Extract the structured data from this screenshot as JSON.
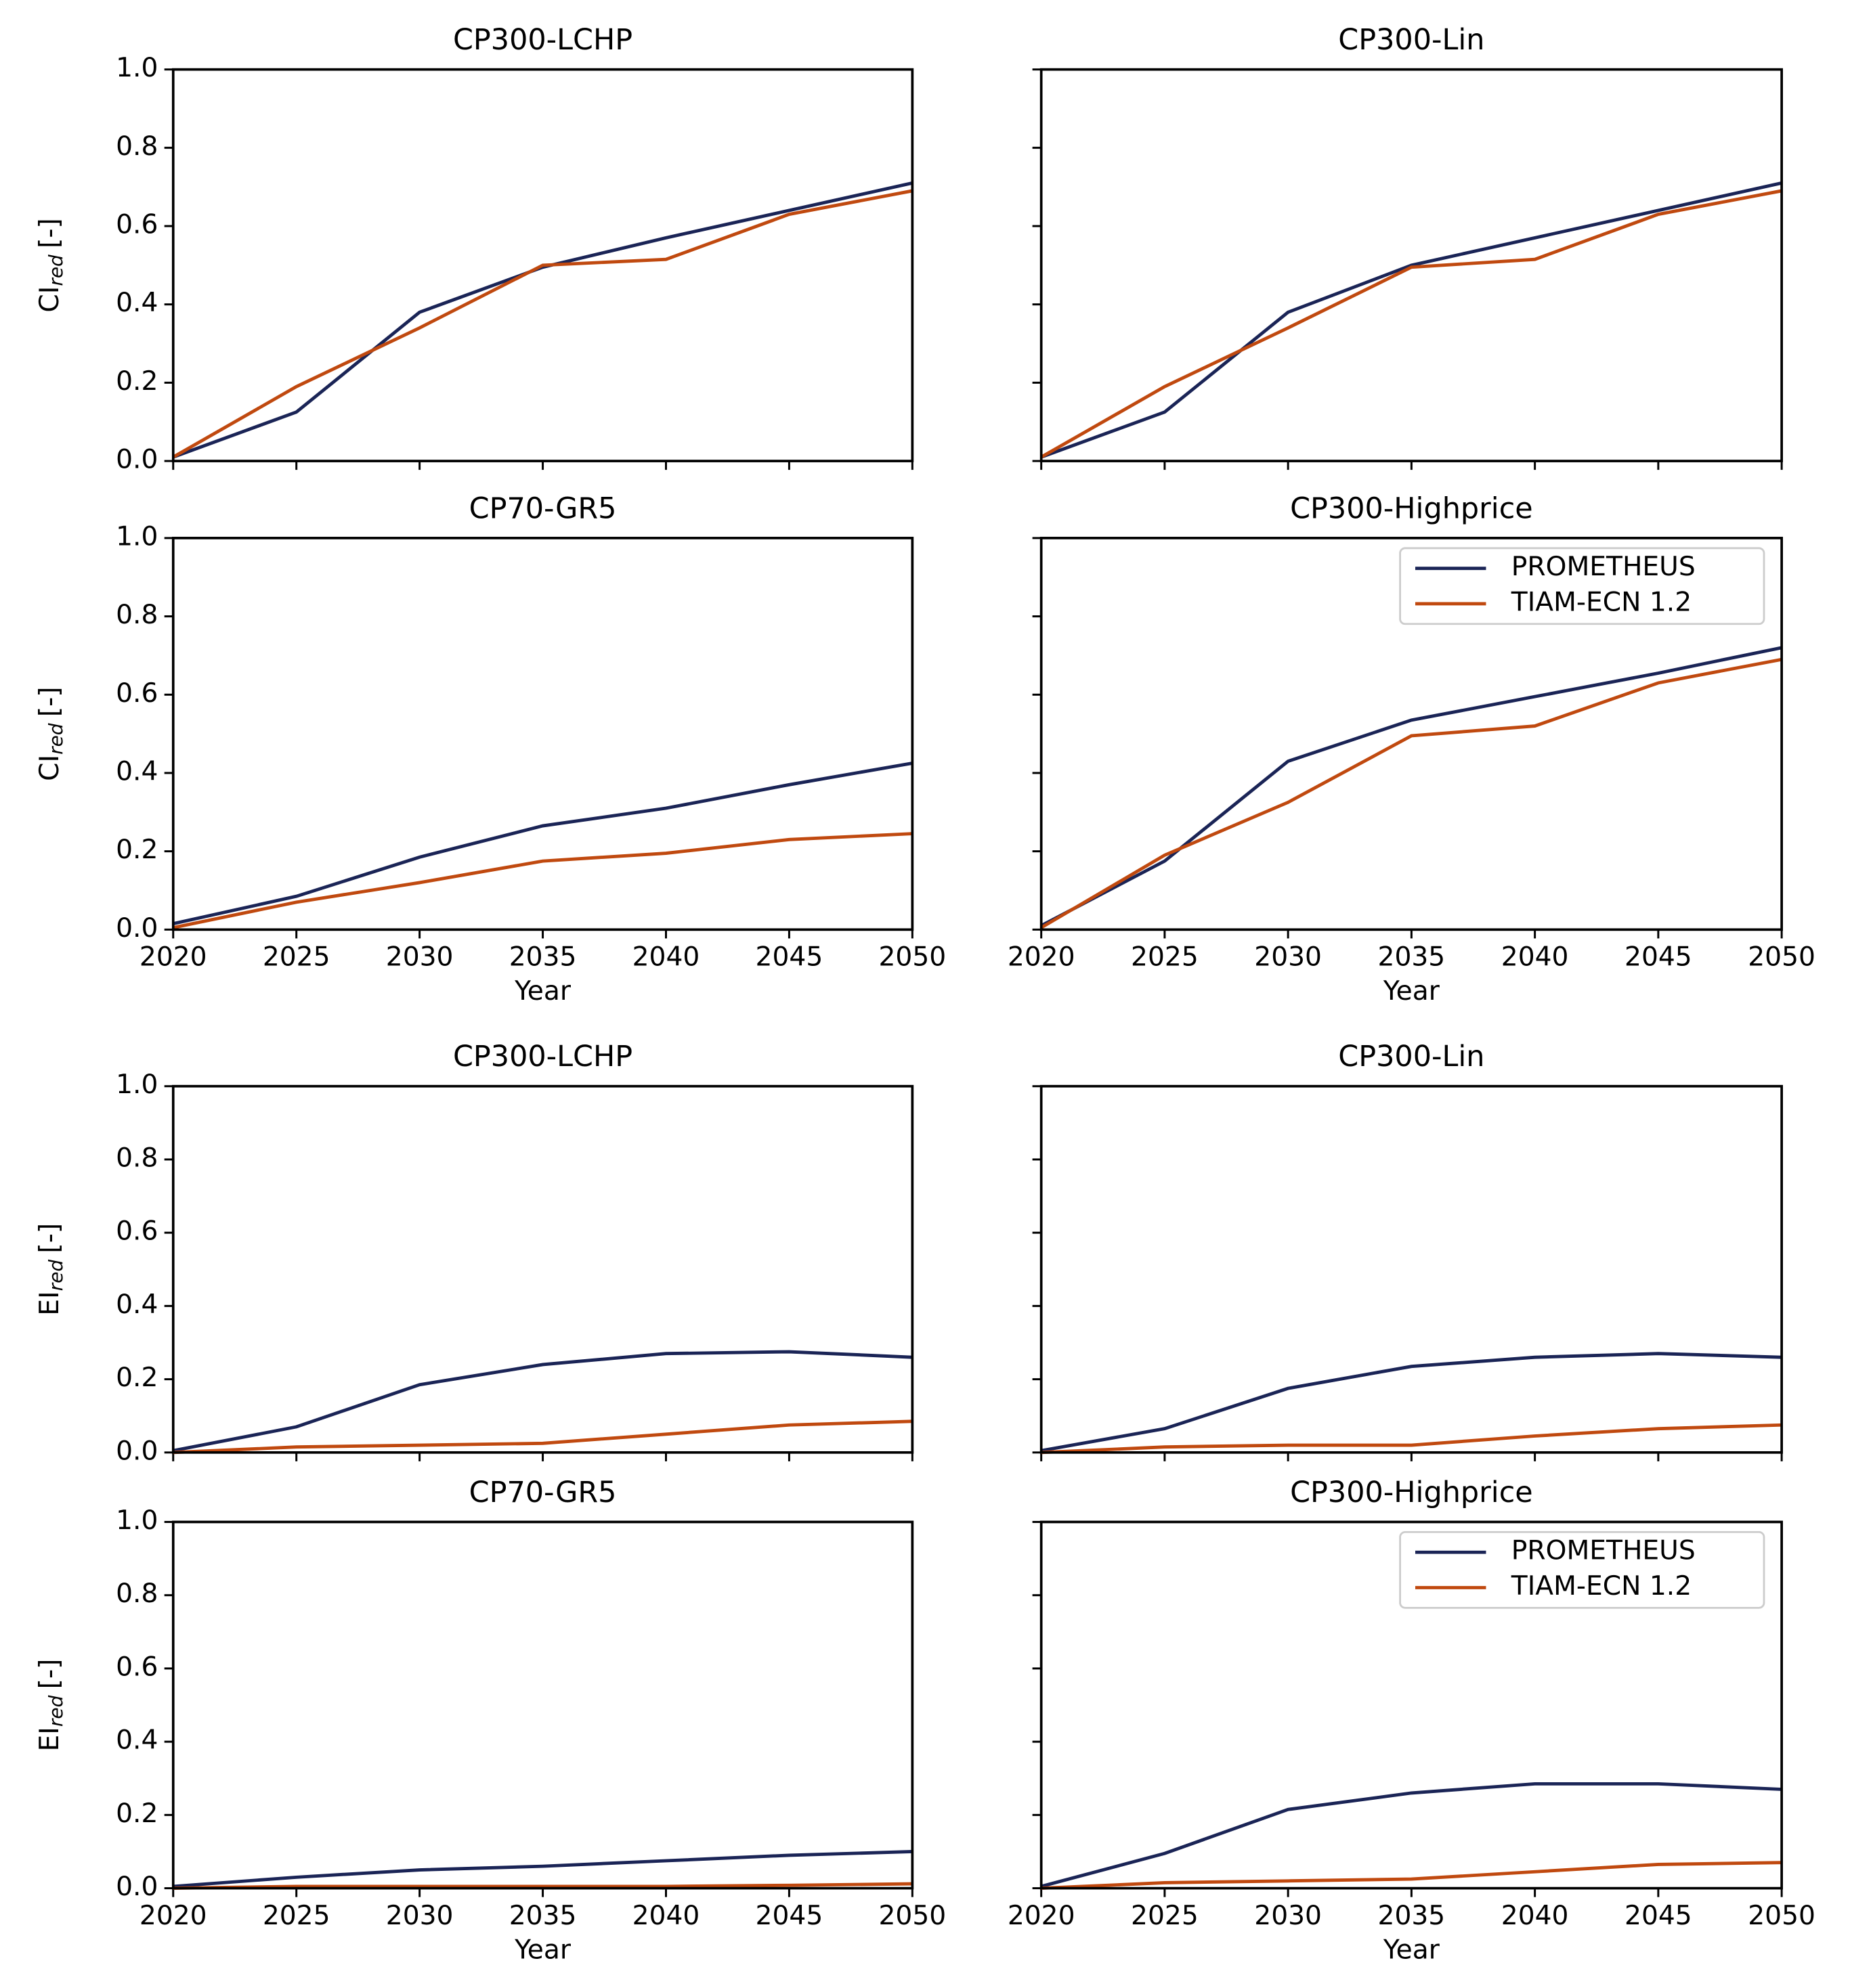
{
  "chart_data": [
    {
      "type": "line",
      "title": "CP300-LCHP",
      "ylabel": {
        "text": "CI",
        "subscript": "red",
        "suffix": "[-]"
      },
      "x": [
        2020,
        2025,
        2030,
        2035,
        2040,
        2045,
        2050
      ],
      "series": [
        {
          "name": "PROMETHEUS",
          "color": "#1a2456",
          "values": [
            0.01,
            0.125,
            0.38,
            0.495,
            0.57,
            0.64,
            0.71
          ]
        },
        {
          "name": "TIAM-ECN 1.2",
          "color": "#c0490f",
          "values": [
            0.01,
            0.19,
            0.34,
            0.5,
            0.515,
            0.63,
            0.69
          ]
        }
      ],
      "xlim": [
        2020,
        2050
      ],
      "ylim": [
        0,
        1
      ],
      "xticks": [
        2020,
        2025,
        2030,
        2035,
        2040,
        2045,
        2050
      ],
      "yticks": [
        {
          "value": 0,
          "label": "0.0"
        },
        0.2,
        0.4,
        0.6,
        0.8,
        {
          "value": 1,
          "label": "1.0"
        }
      ],
      "show_xticklabels": false,
      "show_yticklabels": true
    },
    {
      "type": "line",
      "title": "CP300-Lin",
      "x": [
        2020,
        2025,
        2030,
        2035,
        2040,
        2045,
        2050
      ],
      "series": [
        {
          "name": "PROMETHEUS",
          "color": "#1a2456",
          "values": [
            0.01,
            0.125,
            0.38,
            0.5,
            0.57,
            0.64,
            0.71
          ]
        },
        {
          "name": "TIAM-ECN 1.2",
          "color": "#c0490f",
          "values": [
            0.01,
            0.19,
            0.34,
            0.495,
            0.515,
            0.63,
            0.69
          ]
        }
      ],
      "xlim": [
        2020,
        2050
      ],
      "ylim": [
        0,
        1
      ],
      "xticks": [
        2020,
        2025,
        2030,
        2035,
        2040,
        2045,
        2050
      ],
      "yticks": [
        {
          "value": 0,
          "label": "0.0"
        },
        0.2,
        0.4,
        0.6,
        0.8,
        {
          "value": 1,
          "label": "1.0"
        }
      ],
      "show_xticklabels": false,
      "show_yticklabels": false
    },
    {
      "type": "line",
      "title": "CP70-GR5",
      "ylabel": {
        "text": "CI",
        "subscript": "red",
        "suffix": "[-]"
      },
      "xlabel": "Year",
      "x": [
        2020,
        2025,
        2030,
        2035,
        2040,
        2045,
        2050
      ],
      "series": [
        {
          "name": "PROMETHEUS",
          "color": "#1a2456",
          "values": [
            0.015,
            0.085,
            0.185,
            0.265,
            0.31,
            0.37,
            0.425
          ]
        },
        {
          "name": "TIAM-ECN 1.2",
          "color": "#c0490f",
          "values": [
            0.005,
            0.07,
            0.12,
            0.175,
            0.195,
            0.23,
            0.245
          ]
        }
      ],
      "xlim": [
        2020,
        2050
      ],
      "ylim": [
        0,
        1
      ],
      "xticks": [
        2020,
        2025,
        2030,
        2035,
        2040,
        2045,
        2050
      ],
      "yticks": [
        {
          "value": 0,
          "label": "0.0"
        },
        0.2,
        0.4,
        0.6,
        0.8,
        {
          "value": 1,
          "label": "1.0"
        }
      ],
      "show_xticklabels": true,
      "show_yticklabels": true
    },
    {
      "type": "line",
      "title": "CP300-Highprice",
      "xlabel": "Year",
      "legend": "upper right",
      "x": [
        2020,
        2025,
        2030,
        2035,
        2040,
        2045,
        2050
      ],
      "series": [
        {
          "name": "PROMETHEUS",
          "color": "#1a2456",
          "values": [
            0.01,
            0.175,
            0.43,
            0.535,
            0.595,
            0.655,
            0.72
          ]
        },
        {
          "name": "TIAM-ECN 1.2",
          "color": "#c0490f",
          "values": [
            0.005,
            0.19,
            0.325,
            0.495,
            0.52,
            0.63,
            0.69
          ]
        }
      ],
      "xlim": [
        2020,
        2050
      ],
      "ylim": [
        0,
        1
      ],
      "xticks": [
        2020,
        2025,
        2030,
        2035,
        2040,
        2045,
        2050
      ],
      "yticks": [
        {
          "value": 0,
          "label": "0.0"
        },
        0.2,
        0.4,
        0.6,
        0.8,
        {
          "value": 1,
          "label": "1.0"
        }
      ],
      "show_xticklabels": true,
      "show_yticklabels": false
    },
    {
      "type": "line",
      "title": "CP300-LCHP",
      "ylabel": {
        "text": "EI",
        "subscript": "red",
        "suffix": "[-]"
      },
      "x": [
        2020,
        2025,
        2030,
        2035,
        2040,
        2045,
        2050
      ],
      "series": [
        {
          "name": "PROMETHEUS",
          "color": "#1a2456",
          "values": [
            0.005,
            0.07,
            0.185,
            0.24,
            0.27,
            0.275,
            0.26
          ]
        },
        {
          "name": "TIAM-ECN 1.2",
          "color": "#c0490f",
          "values": [
            0,
            0.015,
            0.02,
            0.025,
            0.05,
            0.075,
            0.085
          ]
        }
      ],
      "xlim": [
        2020,
        2050
      ],
      "ylim": [
        0,
        1
      ],
      "xticks": [
        2020,
        2025,
        2030,
        2035,
        2040,
        2045,
        2050
      ],
      "yticks": [
        {
          "value": 0,
          "label": "0.0"
        },
        0.2,
        0.4,
        0.6,
        0.8,
        {
          "value": 1,
          "label": "1.0"
        }
      ],
      "show_xticklabels": false,
      "show_yticklabels": true
    },
    {
      "type": "line",
      "title": "CP300-Lin",
      "x": [
        2020,
        2025,
        2030,
        2035,
        2040,
        2045,
        2050
      ],
      "series": [
        {
          "name": "PROMETHEUS",
          "color": "#1a2456",
          "values": [
            0.005,
            0.065,
            0.175,
            0.235,
            0.26,
            0.27,
            0.26
          ]
        },
        {
          "name": "TIAM-ECN 1.2",
          "color": "#c0490f",
          "values": [
            0,
            0.015,
            0.02,
            0.02,
            0.045,
            0.065,
            0.075
          ]
        }
      ],
      "xlim": [
        2020,
        2050
      ],
      "ylim": [
        0,
        1
      ],
      "xticks": [
        2020,
        2025,
        2030,
        2035,
        2040,
        2045,
        2050
      ],
      "yticks": [
        {
          "value": 0,
          "label": "0.0"
        },
        0.2,
        0.4,
        0.6,
        0.8,
        {
          "value": 1,
          "label": "1.0"
        }
      ],
      "show_xticklabels": false,
      "show_yticklabels": false
    },
    {
      "type": "line",
      "title": "CP70-GR5",
      "ylabel": {
        "text": "EI",
        "subscript": "red",
        "suffix": "[-]"
      },
      "xlabel": "Year",
      "x": [
        2020,
        2025,
        2030,
        2035,
        2040,
        2045,
        2050
      ],
      "series": [
        {
          "name": "PROMETHEUS",
          "color": "#1a2456",
          "values": [
            0.005,
            0.03,
            0.05,
            0.06,
            0.075,
            0.09,
            0.1
          ]
        },
        {
          "name": "TIAM-ECN 1.2",
          "color": "#c0490f",
          "values": [
            0,
            0.005,
            0.005,
            0.005,
            0.005,
            0.008,
            0.012
          ]
        }
      ],
      "xlim": [
        2020,
        2050
      ],
      "ylim": [
        0,
        1
      ],
      "xticks": [
        2020,
        2025,
        2030,
        2035,
        2040,
        2045,
        2050
      ],
      "yticks": [
        {
          "value": 0,
          "label": "0.0"
        },
        0.2,
        0.4,
        0.6,
        0.8,
        {
          "value": 1,
          "label": "1.0"
        }
      ],
      "show_xticklabels": true,
      "show_yticklabels": true
    },
    {
      "type": "line",
      "title": "CP300-Highprice",
      "xlabel": "Year",
      "legend": "upper right",
      "x": [
        2020,
        2025,
        2030,
        2035,
        2040,
        2045,
        2050
      ],
      "series": [
        {
          "name": "PROMETHEUS",
          "color": "#1a2456",
          "values": [
            0.005,
            0.095,
            0.215,
            0.26,
            0.285,
            0.285,
            0.27
          ]
        },
        {
          "name": "TIAM-ECN 1.2",
          "color": "#c0490f",
          "values": [
            0,
            0.015,
            0.02,
            0.025,
            0.045,
            0.065,
            0.07
          ]
        }
      ],
      "xlim": [
        2020,
        2050
      ],
      "ylim": [
        0,
        1
      ],
      "xticks": [
        2020,
        2025,
        2030,
        2035,
        2040,
        2045,
        2050
      ],
      "yticks": [
        {
          "value": 0,
          "label": "0.0"
        },
        0.2,
        0.4,
        0.6,
        0.8,
        {
          "value": 1,
          "label": "1.0"
        }
      ],
      "show_xticklabels": true,
      "show_yticklabels": false
    }
  ]
}
